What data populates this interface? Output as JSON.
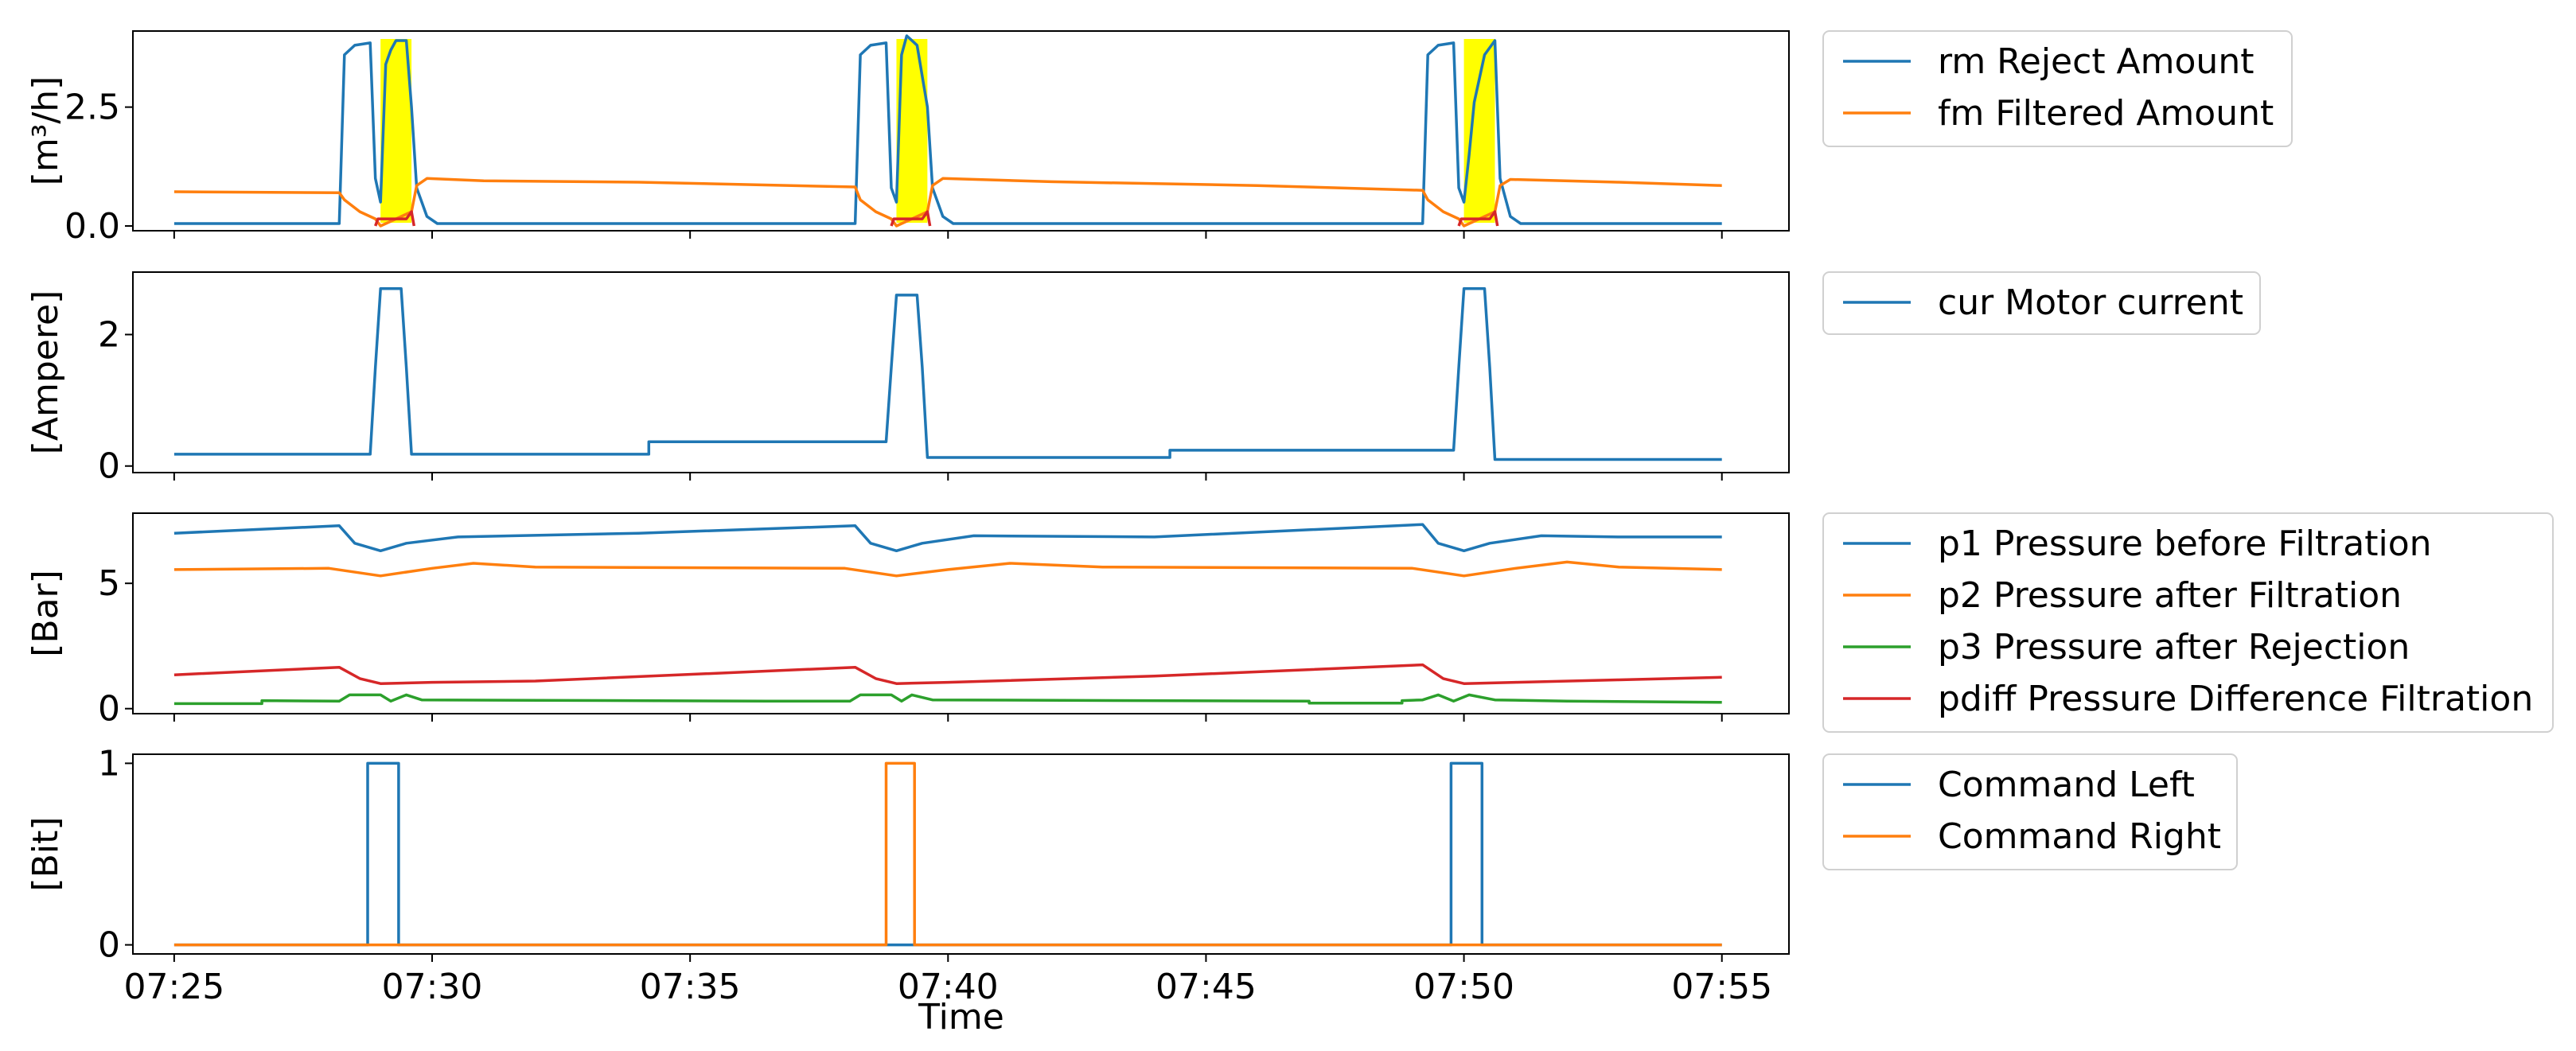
{
  "chart_data": [
    {
      "type": "line",
      "ylabel": "[m³/h]",
      "ylim": [
        -0.1,
        4.1
      ],
      "yticks": [
        0.0,
        2.5
      ],
      "ytick_labels": [
        "0.0",
        "2.5"
      ],
      "highlights": [
        [
          29.0,
          29.6
        ],
        [
          39.0,
          39.6
        ],
        [
          50.0,
          50.6
        ]
      ],
      "highlight_color": "#ffff00",
      "series": [
        {
          "name": "rm Reject Amount",
          "color": "#1f77b4",
          "points": [
            [
              25.0,
              0.05
            ],
            [
              28.2,
              0.05
            ],
            [
              28.3,
              3.6
            ],
            [
              28.5,
              3.8
            ],
            [
              28.8,
              3.85
            ],
            [
              28.9,
              1.0
            ],
            [
              29.0,
              0.5
            ],
            [
              29.1,
              3.4
            ],
            [
              29.2,
              3.7
            ],
            [
              29.3,
              3.9
            ],
            [
              29.5,
              3.9
            ],
            [
              29.6,
              2.5
            ],
            [
              29.7,
              0.8
            ],
            [
              29.9,
              0.2
            ],
            [
              30.1,
              0.05
            ],
            [
              38.2,
              0.05
            ],
            [
              38.3,
              3.6
            ],
            [
              38.5,
              3.8
            ],
            [
              38.8,
              3.85
            ],
            [
              38.9,
              0.8
            ],
            [
              39.0,
              0.5
            ],
            [
              39.1,
              3.6
            ],
            [
              39.2,
              4.0
            ],
            [
              39.4,
              3.8
            ],
            [
              39.6,
              2.5
            ],
            [
              39.7,
              0.8
            ],
            [
              39.9,
              0.2
            ],
            [
              40.1,
              0.05
            ],
            [
              49.2,
              0.05
            ],
            [
              49.3,
              3.6
            ],
            [
              49.5,
              3.8
            ],
            [
              49.8,
              3.85
            ],
            [
              49.9,
              0.8
            ],
            [
              50.0,
              0.5
            ],
            [
              50.1,
              1.5
            ],
            [
              50.2,
              2.6
            ],
            [
              50.4,
              3.6
            ],
            [
              50.6,
              3.9
            ],
            [
              50.7,
              1.0
            ],
            [
              50.9,
              0.2
            ],
            [
              51.1,
              0.05
            ],
            [
              55.0,
              0.05
            ]
          ]
        },
        {
          "name": "fm Filtered Amount",
          "color": "#ff7f0e",
          "points": [
            [
              25.0,
              0.72
            ],
            [
              28.2,
              0.7
            ],
            [
              28.3,
              0.55
            ],
            [
              28.6,
              0.3
            ],
            [
              28.9,
              0.15
            ],
            [
              29.0,
              0.0
            ],
            [
              29.3,
              0.15
            ],
            [
              29.6,
              0.3
            ],
            [
              29.7,
              0.85
            ],
            [
              29.9,
              1.0
            ],
            [
              31.0,
              0.95
            ],
            [
              34.0,
              0.92
            ],
            [
              38.2,
              0.82
            ],
            [
              38.3,
              0.55
            ],
            [
              38.6,
              0.3
            ],
            [
              38.9,
              0.15
            ],
            [
              39.0,
              0.0
            ],
            [
              39.3,
              0.15
            ],
            [
              39.6,
              0.3
            ],
            [
              39.7,
              0.85
            ],
            [
              39.9,
              1.0
            ],
            [
              42.0,
              0.93
            ],
            [
              46.0,
              0.85
            ],
            [
              49.2,
              0.75
            ],
            [
              49.3,
              0.55
            ],
            [
              49.6,
              0.3
            ],
            [
              49.9,
              0.15
            ],
            [
              50.0,
              0.0
            ],
            [
              50.3,
              0.15
            ],
            [
              50.6,
              0.3
            ],
            [
              50.7,
              0.85
            ],
            [
              50.9,
              0.98
            ],
            [
              53.0,
              0.92
            ],
            [
              55.0,
              0.85
            ]
          ]
        },
        {
          "name": "",
          "color": "#d62728",
          "points": [
            [
              28.9,
              0.0
            ],
            [
              28.95,
              0.15
            ],
            [
              29.5,
              0.15
            ],
            [
              29.6,
              0.3
            ],
            [
              29.65,
              0.0
            ]
          ]
        },
        {
          "name": "",
          "color": "#d62728",
          "points": [
            [
              38.9,
              0.0
            ],
            [
              38.95,
              0.15
            ],
            [
              39.5,
              0.15
            ],
            [
              39.6,
              0.3
            ],
            [
              39.65,
              0.0
            ]
          ]
        },
        {
          "name": "",
          "color": "#d62728",
          "points": [
            [
              49.9,
              0.0
            ],
            [
              49.95,
              0.15
            ],
            [
              50.5,
              0.15
            ],
            [
              50.6,
              0.3
            ],
            [
              50.65,
              0.0
            ]
          ]
        }
      ]
    },
    {
      "type": "line",
      "ylabel": "[Ampere]",
      "ylim": [
        -0.1,
        2.95
      ],
      "yticks": [
        0,
        2
      ],
      "ytick_labels": [
        "0",
        "2"
      ],
      "series": [
        {
          "name": "cur Motor current",
          "color": "#1f77b4",
          "points": [
            [
              25.0,
              0.18
            ],
            [
              28.8,
              0.18
            ],
            [
              28.9,
              1.5
            ],
            [
              29.0,
              2.7
            ],
            [
              29.4,
              2.7
            ],
            [
              29.5,
              1.5
            ],
            [
              29.6,
              0.18
            ],
            [
              34.2,
              0.18
            ],
            [
              34.2,
              0.37
            ],
            [
              38.8,
              0.37
            ],
            [
              38.9,
              1.5
            ],
            [
              39.0,
              2.6
            ],
            [
              39.4,
              2.6
            ],
            [
              39.5,
              1.5
            ],
            [
              39.6,
              0.13
            ],
            [
              44.3,
              0.13
            ],
            [
              44.3,
              0.24
            ],
            [
              49.8,
              0.24
            ],
            [
              49.9,
              1.5
            ],
            [
              50.0,
              2.7
            ],
            [
              50.4,
              2.7
            ],
            [
              50.5,
              1.5
            ],
            [
              50.6,
              0.1
            ],
            [
              55.0,
              0.1
            ]
          ]
        }
      ]
    },
    {
      "type": "line",
      "ylabel": "[Bar]",
      "ylim": [
        -0.2,
        7.8
      ],
      "yticks": [
        0,
        5
      ],
      "ytick_labels": [
        "0",
        "5"
      ],
      "series": [
        {
          "name": "p1 Pressure before Filtration",
          "color": "#1f77b4",
          "points": [
            [
              25.0,
              7.0
            ],
            [
              28.2,
              7.3
            ],
            [
              28.5,
              6.6
            ],
            [
              29.0,
              6.3
            ],
            [
              29.5,
              6.6
            ],
            [
              30.5,
              6.85
            ],
            [
              34.0,
              7.0
            ],
            [
              38.2,
              7.3
            ],
            [
              38.5,
              6.6
            ],
            [
              39.0,
              6.3
            ],
            [
              39.5,
              6.6
            ],
            [
              40.5,
              6.9
            ],
            [
              44.0,
              6.85
            ],
            [
              49.2,
              7.35
            ],
            [
              49.5,
              6.6
            ],
            [
              50.0,
              6.3
            ],
            [
              50.5,
              6.6
            ],
            [
              51.5,
              6.9
            ],
            [
              53.0,
              6.85
            ],
            [
              55.0,
              6.85
            ]
          ]
        },
        {
          "name": "p2 Pressure after Filtration",
          "color": "#ff7f0e",
          "points": [
            [
              25.0,
              5.55
            ],
            [
              28.0,
              5.6
            ],
            [
              29.0,
              5.3
            ],
            [
              30.0,
              5.6
            ],
            [
              30.8,
              5.8
            ],
            [
              32.0,
              5.65
            ],
            [
              38.0,
              5.6
            ],
            [
              39.0,
              5.3
            ],
            [
              40.0,
              5.55
            ],
            [
              41.2,
              5.8
            ],
            [
              43.0,
              5.65
            ],
            [
              49.0,
              5.6
            ],
            [
              50.0,
              5.3
            ],
            [
              51.0,
              5.6
            ],
            [
              52.0,
              5.85
            ],
            [
              53.0,
              5.65
            ],
            [
              55.0,
              5.55
            ]
          ]
        },
        {
          "name": "p3 Pressure after Rejection",
          "color": "#2ca02c",
          "points": [
            [
              25.0,
              0.2
            ],
            [
              26.7,
              0.2
            ],
            [
              26.7,
              0.32
            ],
            [
              28.2,
              0.3
            ],
            [
              28.4,
              0.55
            ],
            [
              29.0,
              0.55
            ],
            [
              29.2,
              0.3
            ],
            [
              29.5,
              0.55
            ],
            [
              29.8,
              0.35
            ],
            [
              36.5,
              0.3
            ],
            [
              38.1,
              0.3
            ],
            [
              38.3,
              0.55
            ],
            [
              38.9,
              0.55
            ],
            [
              39.1,
              0.3
            ],
            [
              39.3,
              0.55
            ],
            [
              39.7,
              0.35
            ],
            [
              47.0,
              0.3
            ],
            [
              47.0,
              0.22
            ],
            [
              48.8,
              0.22
            ],
            [
              48.8,
              0.32
            ],
            [
              49.2,
              0.35
            ],
            [
              49.5,
              0.55
            ],
            [
              49.8,
              0.3
            ],
            [
              50.1,
              0.55
            ],
            [
              50.6,
              0.35
            ],
            [
              52.0,
              0.3
            ],
            [
              55.0,
              0.25
            ]
          ]
        },
        {
          "name": "pdiff Pressure Difference Filtration",
          "color": "#d62728",
          "points": [
            [
              25.0,
              1.35
            ],
            [
              28.2,
              1.65
            ],
            [
              28.6,
              1.2
            ],
            [
              29.0,
              1.0
            ],
            [
              30.0,
              1.05
            ],
            [
              32.0,
              1.1
            ],
            [
              38.2,
              1.65
            ],
            [
              38.6,
              1.2
            ],
            [
              39.0,
              1.0
            ],
            [
              40.0,
              1.05
            ],
            [
              44.0,
              1.3
            ],
            [
              49.2,
              1.75
            ],
            [
              49.6,
              1.2
            ],
            [
              50.0,
              1.0
            ],
            [
              51.0,
              1.05
            ],
            [
              53.0,
              1.15
            ],
            [
              55.0,
              1.25
            ]
          ]
        }
      ]
    },
    {
      "type": "line",
      "ylabel": "[Bit]",
      "ylim": [
        -0.05,
        1.05
      ],
      "yticks": [
        0,
        1
      ],
      "ytick_labels": [
        "0",
        "1"
      ],
      "xlabel": "Time",
      "xticks": [
        25,
        30,
        35,
        40,
        45,
        50,
        55
      ],
      "xtick_labels": [
        "07:25",
        "07:30",
        "07:35",
        "07:40",
        "07:45",
        "07:50",
        "07:55"
      ],
      "xlim": [
        24.2,
        56.3
      ],
      "series": [
        {
          "name": "Command Left",
          "color": "#1f77b4",
          "points": [
            [
              25.0,
              0
            ],
            [
              28.75,
              0
            ],
            [
              28.75,
              1
            ],
            [
              29.35,
              1
            ],
            [
              29.35,
              0
            ],
            [
              49.75,
              0
            ],
            [
              49.75,
              1
            ],
            [
              50.35,
              1
            ],
            [
              50.35,
              0
            ],
            [
              55.0,
              0
            ]
          ]
        },
        {
          "name": "Command Right",
          "color": "#ff7f0e",
          "points": [
            [
              25.0,
              0
            ],
            [
              38.8,
              0
            ],
            [
              38.8,
              1
            ],
            [
              39.35,
              1
            ],
            [
              39.35,
              0
            ],
            [
              55.0,
              0
            ]
          ]
        }
      ]
    }
  ]
}
